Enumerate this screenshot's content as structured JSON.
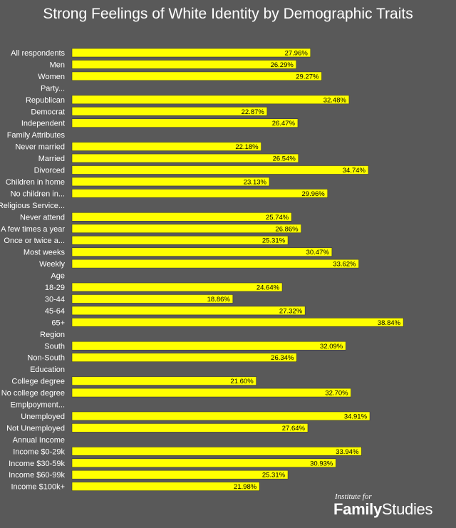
{
  "chart_data": {
    "type": "bar",
    "orientation": "horizontal",
    "title": "Strong Feelings of White Identity by Demographic Traits",
    "categories": [
      "All respondents",
      "Men",
      "Women",
      "Party...",
      "Republican",
      "Democrat",
      "Independent",
      "Family Attributes",
      "Never married",
      "Married",
      "Divorced",
      "Children in home",
      "No children in...",
      "Religious Service...",
      "Never attend",
      "A few times a year",
      "Once or twice a...",
      "Most weeks",
      "Weekly",
      "Age",
      "18-29",
      "30-44",
      "45-64",
      "65+",
      "Region",
      "South",
      "Non-South",
      "Education",
      "College degree",
      "No college degree",
      "Emplpoyment...",
      "Unemployed",
      "Not Unemployed",
      "Annual Income",
      "Income $0-29k",
      "Income $30-59k",
      "Income $60-99k",
      "Income $100k+"
    ],
    "values": [
      27.96,
      26.29,
      29.27,
      null,
      32.48,
      22.87,
      26.47,
      null,
      22.18,
      26.54,
      34.74,
      23.13,
      29.96,
      null,
      25.74,
      26.86,
      25.31,
      30.47,
      33.62,
      null,
      24.64,
      18.86,
      27.32,
      38.84,
      null,
      32.09,
      26.34,
      null,
      21.6,
      32.7,
      null,
      34.91,
      27.64,
      null,
      33.94,
      30.93,
      25.31,
      21.98
    ],
    "labels": [
      "27.96%",
      "26.29%",
      "29.27%",
      "",
      "32.48%",
      "22.87%",
      "26.47%",
      "",
      "22.18%",
      "26.54%",
      "34.74%",
      "23.13%",
      "29.96%",
      "",
      "25.74%",
      "26.86%",
      "25.31%",
      "30.47%",
      "33.62%",
      "",
      "24.64%",
      "18.86%",
      "27.32%",
      "38.84%",
      "",
      "32.09%",
      "26.34%",
      "",
      "21.60%",
      "32.70%",
      "",
      "34.91%",
      "27.64%",
      "",
      "33.94%",
      "30.93%",
      "25.31%",
      "21.98%"
    ],
    "xlim": [
      0,
      40
    ],
    "grid": false,
    "colors": {
      "bar": "#ffff00",
      "background": "#595959",
      "bar_border": "#3a3a3a",
      "text": "#ffffff"
    }
  },
  "logo": {
    "top": "Institute for",
    "bottom_bold": "Family",
    "bottom_regular": "Studies"
  }
}
